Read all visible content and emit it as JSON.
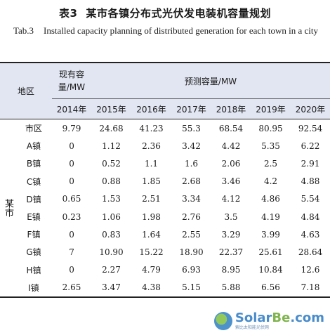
{
  "caption": {
    "zh_number": "表3",
    "zh_title": "某市各镇分布式光伏发电装机容量规划",
    "en_number": "Tab.3",
    "en_title": "Installed capacity planning of distributed generation for each town in a city"
  },
  "table": {
    "header": {
      "region": "地区",
      "existing_capacity": "现有容量/MW",
      "forecast_capacity": "预测容量/MW",
      "years": [
        "2014年",
        "2015年",
        "2016年",
        "2017年",
        "2018年",
        "2019年",
        "2020年"
      ]
    },
    "city_label": "某市",
    "rows": [
      {
        "name": "市区",
        "values": [
          "9.79",
          "24.68",
          "41.23",
          "55.3",
          "68.54",
          "80.95",
          "92.54"
        ]
      },
      {
        "name": "A镇",
        "values": [
          "0",
          "1.12",
          "2.36",
          "3.42",
          "4.42",
          "5.35",
          "6.22"
        ]
      },
      {
        "name": "B镇",
        "values": [
          "0",
          "0.52",
          "1.1",
          "1.6",
          "2.06",
          "2.5",
          "2.91"
        ]
      },
      {
        "name": "C镇",
        "values": [
          "0",
          "0.88",
          "1.85",
          "2.68",
          "3.46",
          "4.2",
          "4.88"
        ]
      },
      {
        "name": "D镇",
        "values": [
          "0.65",
          "1.53",
          "2.51",
          "3.34",
          "4.12",
          "4.86",
          "5.54"
        ]
      },
      {
        "name": "E镇",
        "values": [
          "0.23",
          "1.06",
          "1.98",
          "2.76",
          "3.5",
          "4.19",
          "4.84"
        ]
      },
      {
        "name": "F镇",
        "values": [
          "0",
          "0.83",
          "1.64",
          "2.55",
          "3.29",
          "3.99",
          "4.63"
        ]
      },
      {
        "name": "G镇",
        "values": [
          "7",
          "10.90",
          "15.22",
          "18.90",
          "22.37",
          "25.61",
          "28.64"
        ]
      },
      {
        "name": "H镇",
        "values": [
          "0",
          "2.27",
          "4.79",
          "6.93",
          "8.95",
          "10.84",
          "12.6"
        ]
      },
      {
        "name": "I镇",
        "values": [
          "2.65",
          "3.47",
          "4.38",
          "5.15",
          "5.88",
          "6.56",
          "7.18"
        ]
      }
    ]
  },
  "watermark": {
    "brand_main": "Solar",
    "brand_accent": "Be",
    "brand_suffix": ".com",
    "sub": "索比太阳能光伏网"
  }
}
